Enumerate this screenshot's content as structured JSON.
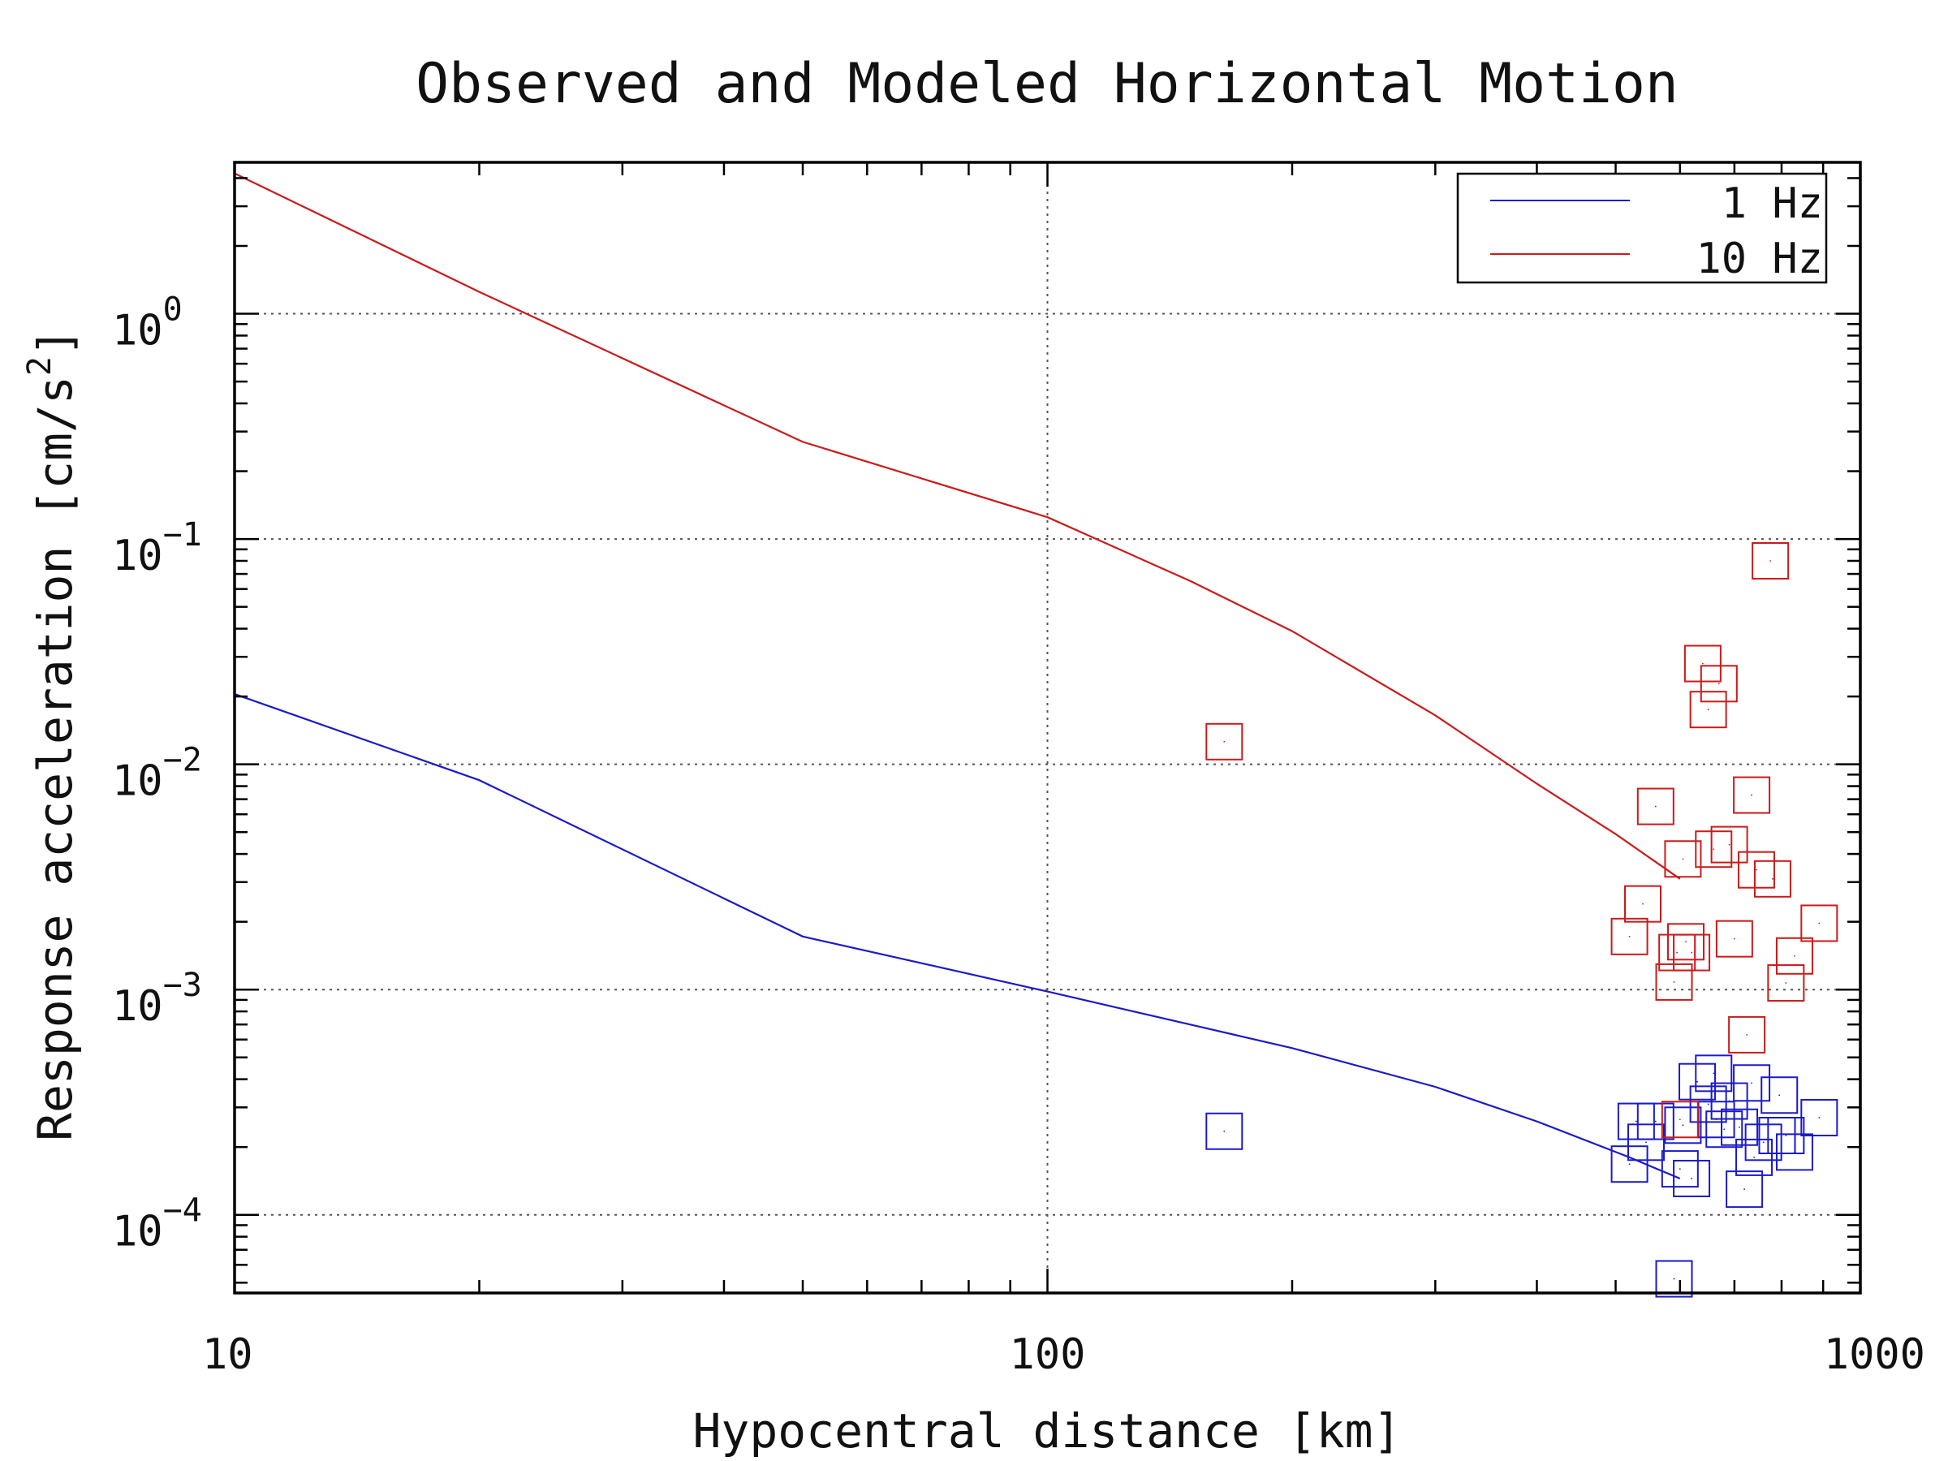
{
  "chart_data": {
    "type": "scatter",
    "title": "Observed and Modeled Horizontal Motion",
    "xlabel": "Hypocentral distance [km]",
    "ylabel": "Response acceleration [cm/s",
    "ylabel_superscript": "2",
    "ylabel_close": "]",
    "x_scale": "log",
    "y_scale": "log",
    "xlim": [
      10,
      1000
    ],
    "ylim": [
      4.5e-05,
      4.7
    ],
    "x_ticks": [
      {
        "value": 10,
        "label": "10"
      },
      {
        "value": 100,
        "label": "100"
      },
      {
        "value": 1000,
        "label": "1000"
      }
    ],
    "y_ticks": [
      {
        "value": 1,
        "base": "10",
        "exp": "0"
      },
      {
        "value": 0.1,
        "base": "10",
        "exp": "−1"
      },
      {
        "value": 0.01,
        "base": "10",
        "exp": "−2"
      },
      {
        "value": 0.001,
        "base": "10",
        "exp": "−3"
      },
      {
        "value": 0.0001,
        "base": "10",
        "exp": "−4"
      }
    ],
    "grid": true,
    "legend": {
      "position": "top-right"
    },
    "series": [
      {
        "name": "1 Hz",
        "color": "#1a1acc",
        "type": "line",
        "x": [
          10,
          20,
          50,
          100,
          200,
          300,
          400,
          520,
          600
        ],
        "y": [
          0.0205,
          0.0085,
          0.00172,
          0.00098,
          0.00055,
          0.00037,
          0.00026,
          0.00018,
          0.000145
        ]
      },
      {
        "name": "10 Hz",
        "color": "#cc1a1a",
        "type": "line",
        "x": [
          10,
          20,
          50,
          100,
          150,
          200,
          300,
          400,
          500,
          600
        ],
        "y": [
          4.2,
          1.25,
          0.27,
          0.125,
          0.065,
          0.039,
          0.0165,
          0.0082,
          0.0049,
          0.0031
        ]
      }
    ],
    "observations": [
      {
        "name": "1 Hz",
        "color": "#1a1acc",
        "marker": "square",
        "x": [
          165,
          560,
          605,
          630,
          660,
          665,
          680,
          710,
          720,
          735,
          740,
          760,
          790,
          795,
          810,
          830,
          890,
          520,
          530,
          545,
          590,
          600,
          620,
          650,
          690
        ],
        "y": [
          0.000235,
          0.00026,
          0.00025,
          0.00039,
          0.000425,
          0.000265,
          0.00024,
          0.000245,
          0.00013,
          0.000385,
          0.00018,
          0.00021,
          0.000225,
          0.00034,
          0.000225,
          0.00019,
          0.00027,
          0.000168,
          0.00026,
          0.00021,
          5.2e-05,
          0.00016,
          0.000145,
          0.00031,
          0.00032
        ]
      },
      {
        "name": "10 Hz",
        "color": "#cc1a1a",
        "marker": "square",
        "x": [
          165,
          560,
          605,
          640,
          650,
          660,
          670,
          690,
          700,
          725,
          735,
          745,
          775,
          780,
          810,
          830,
          890,
          520,
          540,
          590,
          595,
          610,
          620,
          600
        ],
        "y": [
          0.0126,
          0.0065,
          0.0038,
          0.028,
          0.0175,
          0.0042,
          0.0228,
          0.0044,
          0.00168,
          0.00063,
          0.0073,
          0.0034,
          0.08,
          0.0031,
          0.00107,
          0.00141,
          0.00197,
          0.00172,
          0.0024,
          0.00108,
          0.00146,
          0.00163,
          0.00146,
          0.000265
        ]
      }
    ]
  }
}
